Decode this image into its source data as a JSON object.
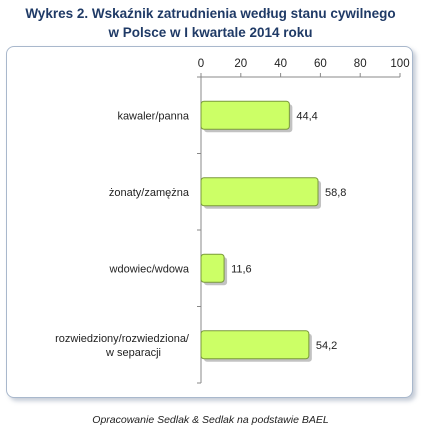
{
  "title_line1": "Wykres 2. Wskaźnik zatrudnienia według stanu cywilnego",
  "title_line2": "w Polsce w I kwartale 2014 roku",
  "footer": "Opracowanie Sedlak & Sedlak na podstawie BAEL",
  "colors": {
    "bar_fill": "#ccff66",
    "bar_stroke": "#7a9a3a",
    "axis": "#888888",
    "title": "#1f3a66"
  },
  "chart_data": {
    "type": "bar",
    "orientation": "horizontal",
    "title": "Wykres 2. Wskaźnik zatrudnienia według stanu cywilnego w Polsce w I kwartale 2014 roku",
    "categories": [
      [
        "kawaler/panna"
      ],
      [
        "żonaty/zamężna"
      ],
      [
        "wdowiec/wdowa"
      ],
      [
        "rozwiedziony/rozwiedziona/",
        "w separacji"
      ]
    ],
    "values": [
      44.4,
      58.8,
      11.6,
      54.2
    ],
    "value_labels": [
      "44,4",
      "58,8",
      "11,6",
      "54,2"
    ],
    "xlim": [
      0,
      100
    ],
    "xticks": [
      0,
      20,
      40,
      60,
      80,
      100
    ],
    "x_axis_position": "top",
    "grid": false,
    "legend": "none"
  }
}
